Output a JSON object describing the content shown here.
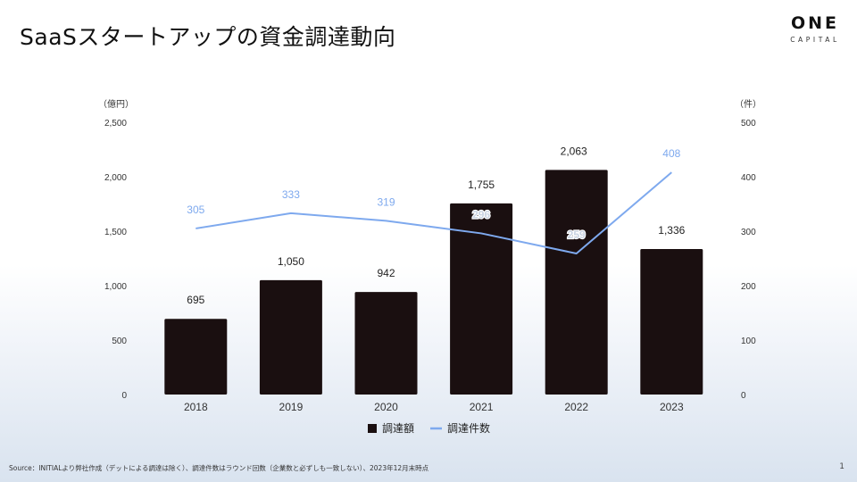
{
  "header": {
    "title": "SaaSスタートアップの資金調達動向",
    "logo_main": "ONE",
    "logo_sub": "CAPITAL"
  },
  "footer": {
    "source": "Source：INITIALより弊社作成（デットによる調達は除く）、調達件数はラウンド回数（企業数と必ずしも一致しない）、2023年12月末時点",
    "page_number": "1"
  },
  "chart_data": {
    "type": "bar",
    "categories": [
      "2018",
      "2019",
      "2020",
      "2021",
      "2022",
      "2023"
    ],
    "series": [
      {
        "name": "調達額",
        "type": "bar",
        "axis": "left",
        "values": [
          695,
          1050,
          942,
          1755,
          2063,
          1336
        ],
        "color": "#1a0f10"
      },
      {
        "name": "調達件数",
        "type": "line",
        "axis": "right",
        "values": [
          305,
          333,
          319,
          296,
          259,
          408
        ],
        "color": "#7ea9ee"
      }
    ],
    "y_left": {
      "unit_label": "（億円）",
      "range": [
        0,
        2500
      ],
      "ticks": [
        "0",
        "500",
        "1,000",
        "1,500",
        "2,000",
        "2,500"
      ]
    },
    "y_right": {
      "unit_label": "（件）",
      "range": [
        0,
        500
      ],
      "ticks": [
        "0",
        "100",
        "200",
        "300",
        "400",
        "500"
      ]
    },
    "bar_labels": [
      "695",
      "1,050",
      "942",
      "1,755",
      "2,063",
      "1,336"
    ],
    "line_labels": [
      "305",
      "333",
      "319",
      "296",
      "259",
      "408"
    ],
    "legend_position": "bottom-center",
    "grid": false
  }
}
